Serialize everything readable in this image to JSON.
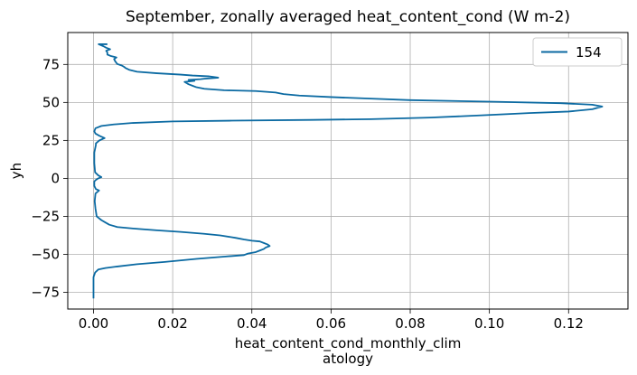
{
  "chart_data": {
    "type": "line",
    "title": "September, zonally averaged heat_content_cond (W m-2)",
    "xlabel_lines": [
      "heat_content_cond_monthly_clim",
      "atology"
    ],
    "ylabel": "yh",
    "xlim": [
      -0.0065,
      0.135
    ],
    "ylim": [
      -86,
      96
    ],
    "xticks": [
      0.0,
      0.02,
      0.04,
      0.06,
      0.08,
      0.1,
      0.12
    ],
    "xtick_labels": [
      "0.00",
      "0.02",
      "0.04",
      "0.06",
      "0.08",
      "0.10",
      "0.12"
    ],
    "yticks": [
      75,
      50,
      25,
      0,
      -25,
      -50,
      -75
    ],
    "ytick_labels": [
      "75",
      "50",
      "25",
      "0",
      "−25",
      "−50",
      "−75"
    ],
    "grid": true,
    "legend_position": "top-right",
    "series": [
      {
        "name": "154",
        "color": "#0b6aa2",
        "points": [
          [
            0.0,
            -79
          ],
          [
            0.0,
            -70
          ],
          [
            0.0,
            -65
          ],
          [
            0.0004,
            -62
          ],
          [
            0.0012,
            -60
          ],
          [
            0.003,
            -59
          ],
          [
            0.006,
            -58
          ],
          [
            0.011,
            -56.5
          ],
          [
            0.018,
            -55
          ],
          [
            0.026,
            -53
          ],
          [
            0.033,
            -51.5
          ],
          [
            0.038,
            -50.5
          ],
          [
            0.039,
            -49.5
          ],
          [
            0.041,
            -48.5
          ],
          [
            0.042,
            -47.5
          ],
          [
            0.043,
            -46.5
          ],
          [
            0.0435,
            -45.5
          ],
          [
            0.0445,
            -44.5
          ],
          [
            0.044,
            -43.5
          ],
          [
            0.043,
            -42.5
          ],
          [
            0.042,
            -41.5
          ],
          [
            0.04,
            -41
          ],
          [
            0.038,
            -40.2
          ],
          [
            0.036,
            -39.2
          ],
          [
            0.032,
            -37.5
          ],
          [
            0.028,
            -36.5
          ],
          [
            0.022,
            -35.2
          ],
          [
            0.016,
            -34.2
          ],
          [
            0.01,
            -33
          ],
          [
            0.006,
            -32
          ],
          [
            0.004,
            -30.5
          ],
          [
            0.003,
            -29
          ],
          [
            0.002,
            -27.5
          ],
          [
            0.0008,
            -25
          ],
          [
            0.0005,
            -20
          ],
          [
            0.0003,
            -15
          ],
          [
            0.0005,
            -10
          ],
          [
            0.0014,
            -8
          ],
          [
            0.0006,
            -7
          ],
          [
            0.0002,
            -5
          ],
          [
            0.0002,
            -2
          ],
          [
            0.0006,
            -1
          ],
          [
            0.0012,
            0
          ],
          [
            0.002,
            0.8
          ],
          [
            0.0012,
            2
          ],
          [
            0.0004,
            4
          ],
          [
            0.0002,
            10
          ],
          [
            0.0002,
            17
          ],
          [
            0.0006,
            22
          ],
          [
            0.0006,
            23
          ],
          [
            0.0015,
            25
          ],
          [
            0.0028,
            26.5
          ],
          [
            0.0015,
            28
          ],
          [
            0.0005,
            29.5
          ],
          [
            0.0002,
            31
          ],
          [
            0.0005,
            33
          ],
          [
            0.002,
            34.5
          ],
          [
            0.005,
            35.5
          ],
          [
            0.01,
            36.5
          ],
          [
            0.02,
            37.5
          ],
          [
            0.035,
            38
          ],
          [
            0.055,
            38.5
          ],
          [
            0.07,
            39
          ],
          [
            0.085,
            40
          ],
          [
            0.098,
            41.5
          ],
          [
            0.11,
            43
          ],
          [
            0.12,
            44
          ],
          [
            0.126,
            45.5
          ],
          [
            0.1285,
            47.3
          ],
          [
            0.126,
            48.5
          ],
          [
            0.118,
            49.5
          ],
          [
            0.1,
            50.5
          ],
          [
            0.08,
            51.5
          ],
          [
            0.07,
            52.5
          ],
          [
            0.06,
            53.5
          ],
          [
            0.052,
            54.5
          ],
          [
            0.048,
            55.5
          ],
          [
            0.046,
            56.5
          ],
          [
            0.041,
            57.5
          ],
          [
            0.033,
            58
          ],
          [
            0.028,
            59
          ],
          [
            0.026,
            60
          ],
          [
            0.025,
            61
          ],
          [
            0.024,
            62
          ],
          [
            0.023,
            63.5
          ],
          [
            0.0255,
            64.2
          ],
          [
            0.024,
            64.8
          ],
          [
            0.027,
            65.3
          ],
          [
            0.028,
            65.6
          ],
          [
            0.0315,
            66.3
          ],
          [
            0.029,
            67.2
          ],
          [
            0.025,
            67.7
          ],
          [
            0.022,
            68.3
          ],
          [
            0.016,
            69.2
          ],
          [
            0.011,
            70.2
          ],
          [
            0.009,
            71.5
          ],
          [
            0.008,
            72.8
          ],
          [
            0.0078,
            73.3
          ],
          [
            0.0072,
            74.2
          ],
          [
            0.006,
            75.3
          ],
          [
            0.0055,
            77
          ],
          [
            0.0052,
            78.5
          ],
          [
            0.0058,
            79.6
          ],
          [
            0.0044,
            80.5
          ],
          [
            0.0035,
            81.5
          ],
          [
            0.0035,
            82.8
          ],
          [
            0.0032,
            84
          ],
          [
            0.0042,
            85
          ],
          [
            0.0032,
            86
          ],
          [
            0.0025,
            87
          ],
          [
            0.0013,
            88.3
          ],
          [
            0.0035,
            88.3
          ]
        ]
      }
    ]
  }
}
